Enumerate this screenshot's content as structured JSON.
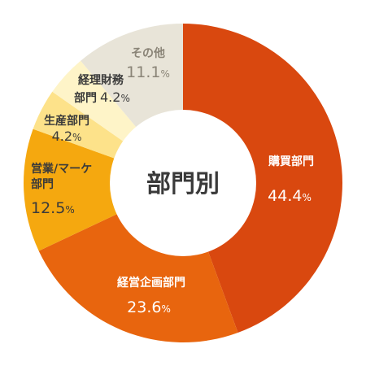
{
  "chart_data": {
    "type": "pie",
    "title": "部門別",
    "slices": [
      {
        "name": "購買部門",
        "value": 44.4,
        "display": "44.4",
        "color": "#D9480F",
        "name_color": "#ffffff",
        "value_color": "#ffffff"
      },
      {
        "name": "経営企画部門",
        "value": 23.6,
        "display": "23.6",
        "color": "#E8650E",
        "name_color": "#ffffff",
        "value_color": "#ffffff"
      },
      {
        "name": "営業/マーケ部門",
        "value": 12.5,
        "display": "12.5",
        "color": "#F5A80F",
        "name_color": "#3a3a3a",
        "value_color": "#3a3a3a"
      },
      {
        "name": "生産部門",
        "value": 4.2,
        "display": "4.2",
        "color": "#FDE28A",
        "name_color": "#3a3a3a",
        "value_color": "#3a3a3a"
      },
      {
        "name": "経理財務部門",
        "value": 4.2,
        "display": "4.2",
        "color": "#FEF4C8",
        "name_color": "#3a3a3a",
        "value_color": "#3a3a3a"
      },
      {
        "name": "その他",
        "value": 11.1,
        "display": "11.1",
        "color": "#E8E4D8",
        "name_color": "#8a8477",
        "value_color": "#8a8477"
      }
    ],
    "unit": "%"
  }
}
